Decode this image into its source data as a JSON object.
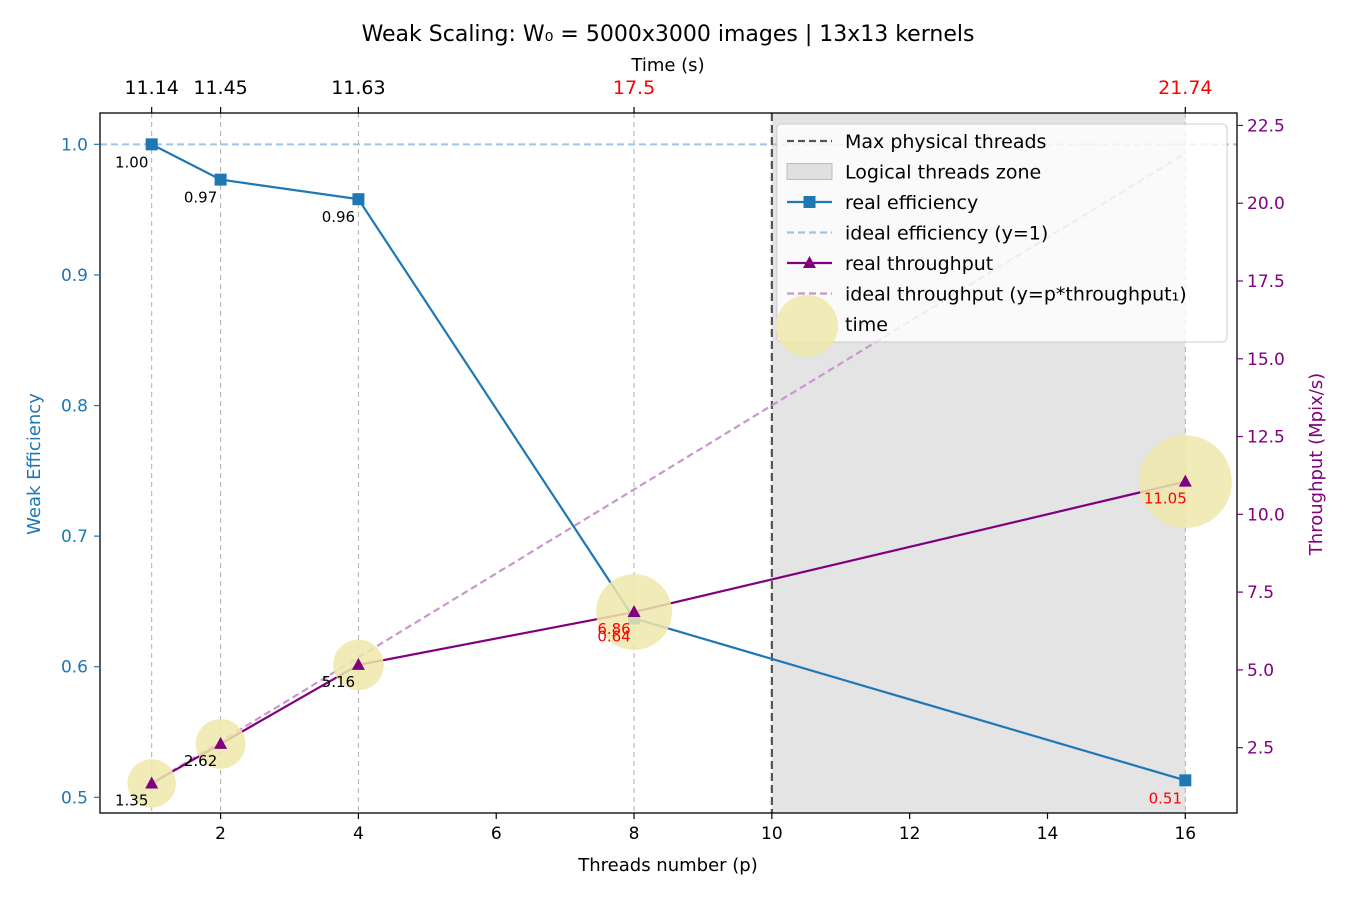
{
  "chart_data": {
    "type": "line",
    "title": "Weak Scaling: W₀ = 5000x3000 images | 13x13 kernels",
    "xlabel": "Threads number (p)",
    "ylabel_left": "Weak Efficiency",
    "ylabel_right": "Throughput (Mpix/s)",
    "top_axis_label": "Time (s)",
    "xlim": [
      0.25,
      16.75
    ],
    "ylim_left": [
      0.488,
      1.024
    ],
    "ylim_right": [
      0.4,
      22.9
    ],
    "x_ticks": [
      2,
      4,
      6,
      8,
      10,
      12,
      14,
      16
    ],
    "x_tick_labels": [
      "2",
      "4",
      "6",
      "8",
      "10",
      "12",
      "14",
      "16"
    ],
    "left_ticks": [
      0.5,
      0.6,
      0.7,
      0.8,
      0.9,
      1.0
    ],
    "left_tick_labels": [
      "0.5",
      "0.6",
      "0.7",
      "0.8",
      "0.9",
      "1.0"
    ],
    "right_ticks": [
      2.5,
      5.0,
      7.5,
      10.0,
      12.5,
      15.0,
      17.5,
      20.0,
      22.5
    ],
    "right_tick_labels": [
      "2.5",
      "5.0",
      "7.5",
      "10.0",
      "12.5",
      "15.0",
      "17.5",
      "20.0",
      "22.5"
    ],
    "threads": [
      1,
      2,
      4,
      8,
      16
    ],
    "time_labels": [
      "11.14",
      "11.45",
      "11.63",
      "17.5",
      "21.74"
    ],
    "time_label_colors": [
      "#000000",
      "#000000",
      "#000000",
      "#ff0000",
      "#ff0000"
    ],
    "series": [
      {
        "name": "real efficiency",
        "axis": "left",
        "color": "#1f77b4",
        "marker": "square",
        "values": [
          1.0,
          0.973,
          0.958,
          0.637,
          0.513
        ],
        "labels": [
          "1.00",
          "0.97",
          "0.96",
          "0.64",
          "0.51"
        ],
        "label_colors": [
          "#000000",
          "#000000",
          "#000000",
          "#ff0000",
          "#ff0000"
        ]
      },
      {
        "name": "ideal efficiency (y=1)",
        "axis": "left",
        "color": "#9ec4e6",
        "dashed": true,
        "values": [
          1.0,
          1.0
        ]
      },
      {
        "name": "real throughput",
        "axis": "right",
        "color": "#800080",
        "marker": "triangle",
        "values": [
          1.35,
          2.62,
          5.16,
          6.86,
          11.05
        ],
        "labels": [
          "1.35",
          "2.62",
          "5.16",
          "6.86",
          "11.05"
        ],
        "label_colors": [
          "#000000",
          "#000000",
          "#000000",
          "#ff0000",
          "#ff0000"
        ]
      },
      {
        "name": "ideal throughput (y=p*throughput₁)",
        "axis": "right",
        "color": "#c997cc",
        "dashed": true,
        "x": [
          1,
          16
        ],
        "values": [
          1.35,
          21.6
        ]
      }
    ],
    "time_bubbles": {
      "name": "time",
      "color": "#eee8aa",
      "values": [
        11.14,
        11.45,
        11.63,
        17.5,
        21.74
      ]
    },
    "max_physical_threads": {
      "name": "Max physical threads",
      "x": 10,
      "color": "#555555"
    },
    "logical_zone": {
      "name": "Logical threads zone",
      "x_start": 10,
      "x_end": 16,
      "color": "#e4e4e4"
    },
    "legend": [
      {
        "label": "Max physical threads",
        "kind": "dashed-line",
        "color": "#555555"
      },
      {
        "label": "Logical threads zone",
        "kind": "patch",
        "color": "#e0e0e0"
      },
      {
        "label": "real efficiency",
        "kind": "line-square",
        "color": "#1f77b4"
      },
      {
        "label": "ideal efficiency (y=1)",
        "kind": "dashed-line",
        "color": "#9ec4e6"
      },
      {
        "label": "real throughput",
        "kind": "line-triangle",
        "color": "#800080"
      },
      {
        "label": "ideal throughput (y=p*throughput₁)",
        "kind": "dashed-line",
        "color": "#c997cc"
      },
      {
        "label": "time",
        "kind": "bubble",
        "color": "#eee8aa"
      }
    ],
    "legend_position": "top-right"
  }
}
